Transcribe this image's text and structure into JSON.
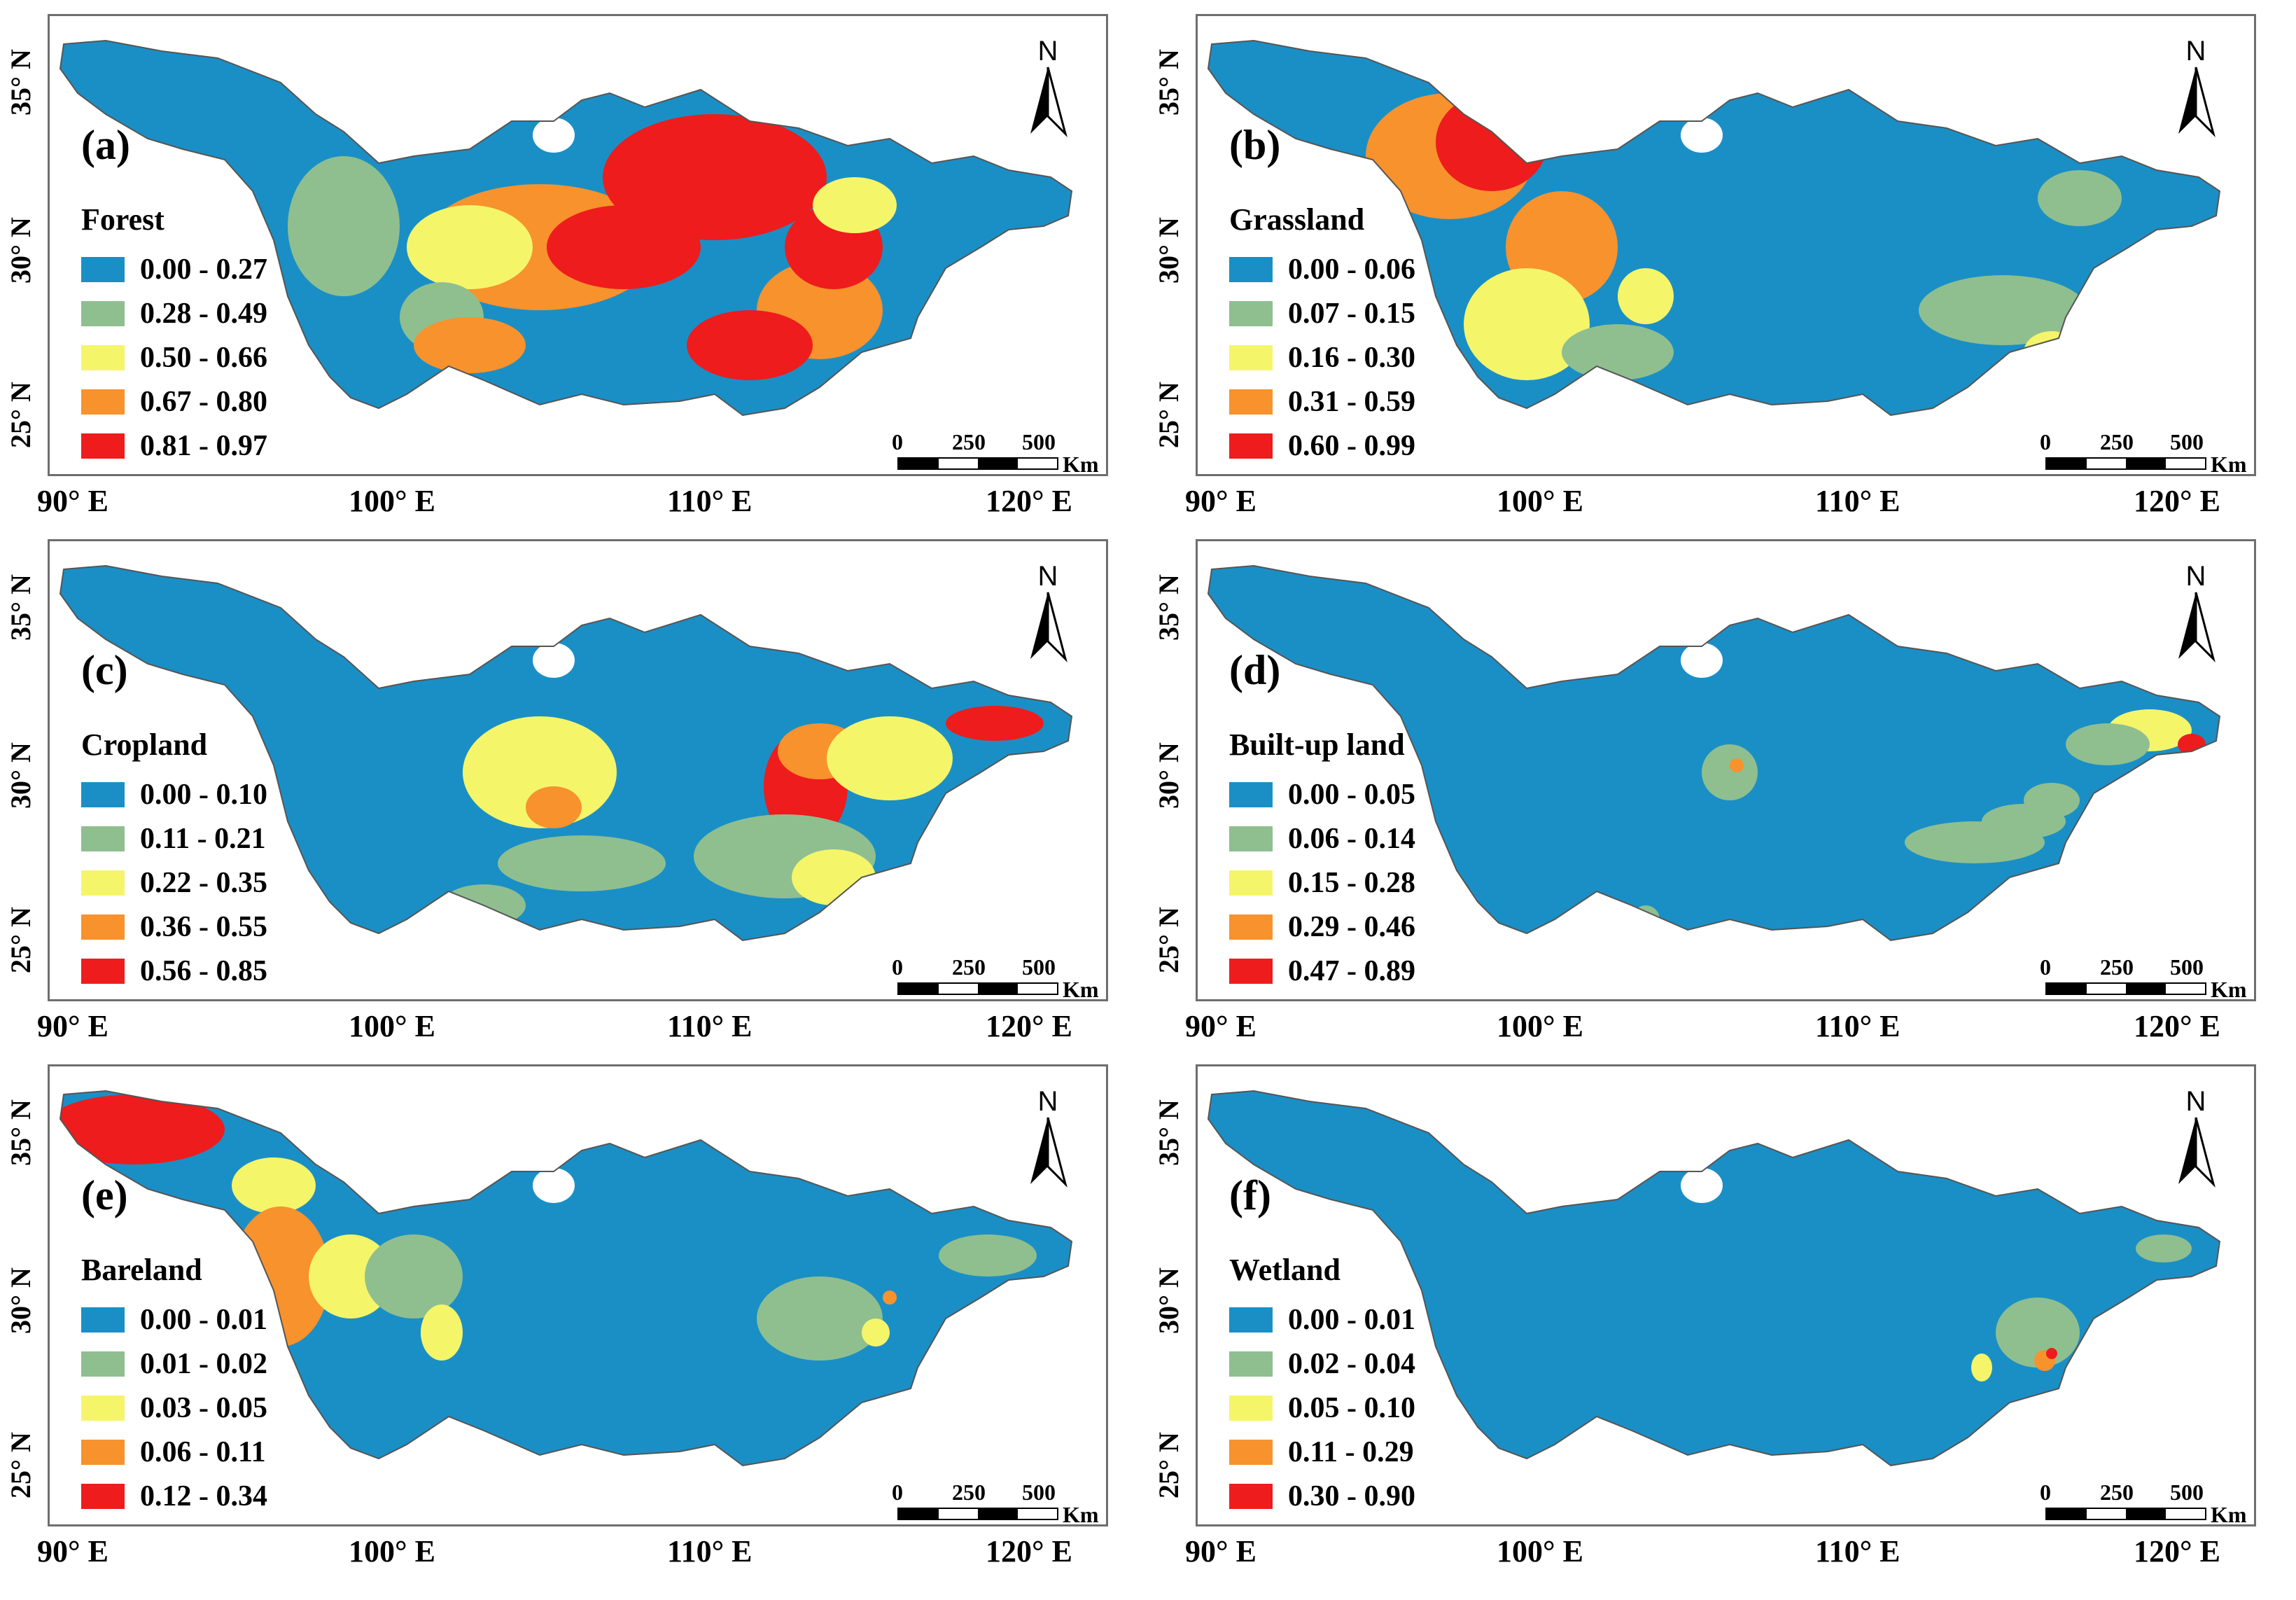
{
  "lat_labels": [
    "35° N",
    "30° N",
    "25° N"
  ],
  "lon_labels": [
    "90° E",
    "100° E",
    "110° E",
    "120° E"
  ],
  "north": "N",
  "scale": {
    "ticks": [
      "0",
      "250",
      "500"
    ],
    "unit": "Km"
  },
  "class_colors": [
    "#1a8fc6",
    "#8fbf8f",
    "#f5f56a",
    "#f7922d",
    "#ee1c1c"
  ],
  "panels": [
    {
      "label": "(a)",
      "title": "Forest",
      "classes": [
        "0.00 - 0.27",
        "0.28 - 0.49",
        "0.50 - 0.66",
        "0.67 - 0.80",
        "0.81 - 0.97"
      ]
    },
    {
      "label": "(b)",
      "title": "Grassland",
      "classes": [
        "0.00 - 0.06",
        "0.07 - 0.15",
        "0.16 - 0.30",
        "0.31 - 0.59",
        "0.60 - 0.99"
      ]
    },
    {
      "label": "(c)",
      "title": "Cropland",
      "classes": [
        "0.00 - 0.10",
        "0.11 - 0.21",
        "0.22 - 0.35",
        "0.36 - 0.55",
        "0.56 - 0.85"
      ]
    },
    {
      "label": "(d)",
      "title": "Built-up land",
      "classes": [
        "0.00 - 0.05",
        "0.06 - 0.14",
        "0.15 - 0.28",
        "0.29 - 0.46",
        "0.47 - 0.89"
      ]
    },
    {
      "label": "(e)",
      "title": "Bareland",
      "classes": [
        "0.00 - 0.01",
        "0.01 - 0.02",
        "0.03 - 0.05",
        "0.06 - 0.11",
        "0.12 - 0.34"
      ]
    },
    {
      "label": "(f)",
      "title": "Wetland",
      "classes": [
        "0.00 - 0.01",
        "0.02 - 0.04",
        "0.05 - 0.10",
        "0.11 - 0.29",
        "0.30 - 0.90"
      ]
    }
  ]
}
